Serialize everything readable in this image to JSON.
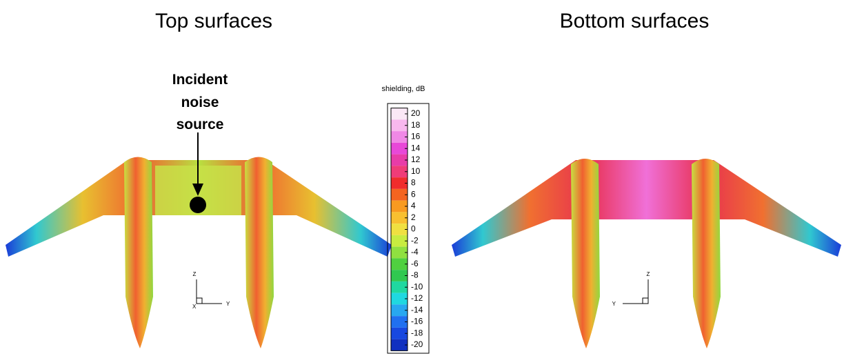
{
  "left_panel": {
    "title": "Top surfaces",
    "annotation": [
      "Incident",
      "noise",
      "source"
    ],
    "axes": {
      "up": "Z",
      "side": "Y",
      "origin": "X"
    }
  },
  "right_panel": {
    "title": "Bottom surfaces",
    "axes": {
      "up": "Z",
      "side": "Y"
    }
  },
  "colorbar": {
    "label": "shielding, dB",
    "ticks": [
      20,
      18,
      16,
      14,
      12,
      10,
      8,
      6,
      4,
      2,
      0,
      -2,
      -4,
      -6,
      -8,
      -10,
      -12,
      -14,
      -16,
      -18,
      -20
    ],
    "colors": [
      "#fbe8f6",
      "#f8b8ee",
      "#f088e6",
      "#e848d8",
      "#e83ca8",
      "#f03c78",
      "#f02c2c",
      "#f46420",
      "#f89a20",
      "#f8c030",
      "#f0e040",
      "#c8ec40",
      "#90e040",
      "#50d040",
      "#30c850",
      "#20d8a0",
      "#20d8e0",
      "#28a8f0",
      "#2070f0",
      "#1848e0",
      "#1030c0"
    ]
  }
}
